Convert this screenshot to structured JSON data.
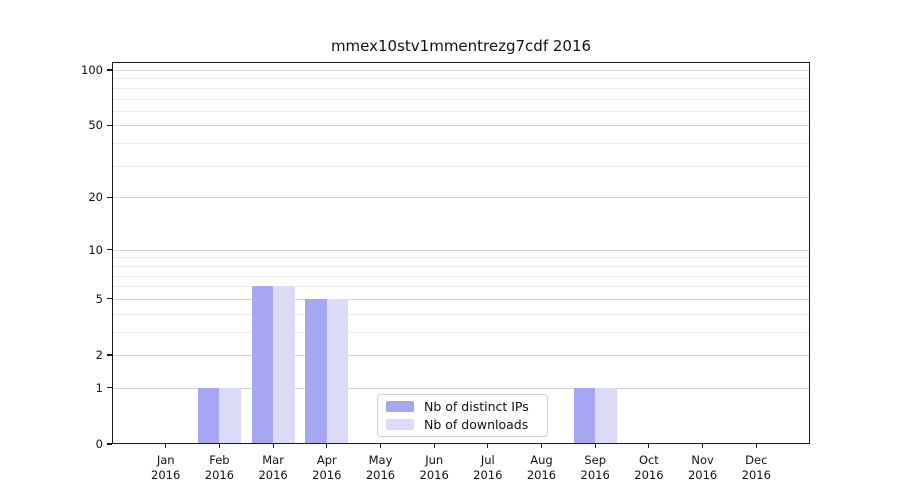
{
  "chart_data": {
    "type": "bar",
    "title": "mmex10stv1mmentrezg7cdf 2016",
    "year": "2016",
    "categories": [
      "Jan",
      "Feb",
      "Mar",
      "Apr",
      "May",
      "Jun",
      "Jul",
      "Aug",
      "Sep",
      "Oct",
      "Nov",
      "Dec"
    ],
    "x_tick_second_line": "2016",
    "series": [
      {
        "name": "Nb of distinct IPs",
        "color": "#a6a6f2",
        "values": [
          0,
          1,
          6,
          5,
          0,
          0,
          0,
          0,
          1,
          0,
          0,
          0
        ]
      },
      {
        "name": "Nb of downloads",
        "color": "#dbdbf8",
        "values": [
          0,
          1,
          6,
          5,
          0,
          0,
          0,
          0,
          1,
          0,
          0,
          0
        ]
      }
    ],
    "yscale": "log1p",
    "ylim": [
      0,
      110
    ],
    "y_major_ticks": [
      0,
      1,
      2,
      5,
      10,
      20,
      50,
      100
    ],
    "y_minor_gridlines": [
      3,
      4,
      6,
      7,
      8,
      9,
      30,
      40,
      60,
      70,
      80,
      90
    ],
    "grid": "horizontal",
    "legend_position": "inside-bottom-center",
    "colors": {
      "major_grid": "#d6d6d6",
      "minor_grid": "#ebebeb",
      "spine": "#1a1a1a",
      "text": "#111111",
      "background": "#ffffff"
    }
  }
}
